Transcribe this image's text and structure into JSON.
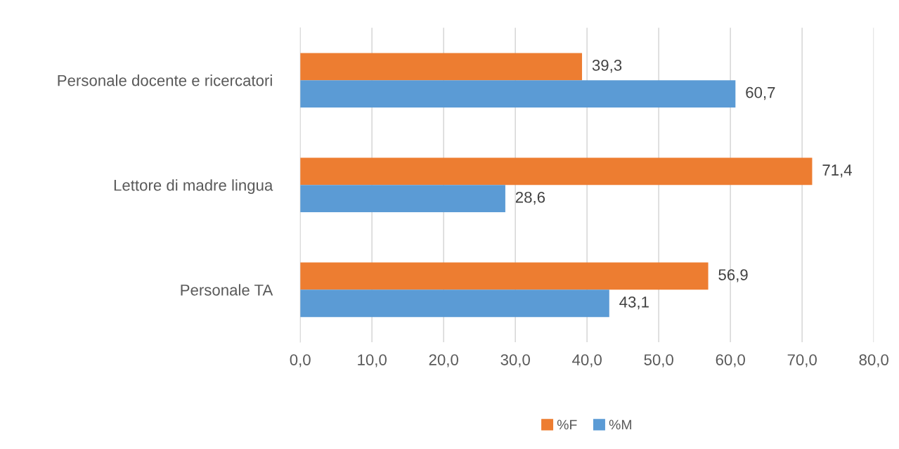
{
  "chart_data": {
    "type": "bar",
    "orientation": "horizontal",
    "categories": [
      "Personale docente e ricercatori",
      "Lettore di madre lingua",
      "Personale TA"
    ],
    "series": [
      {
        "name": "%F",
        "color": "#ed7d31",
        "values": [
          39.3,
          71.4,
          56.9
        ],
        "value_labels": [
          "39,3",
          "71,4",
          "56,9"
        ]
      },
      {
        "name": "%M",
        "color": "#5b9bd5",
        "values": [
          60.7,
          28.6,
          43.1
        ],
        "value_labels": [
          "60,7",
          "28,6",
          "43,1"
        ]
      }
    ],
    "xlim": [
      0,
      80
    ],
    "xticks": [
      {
        "value": 0,
        "label": "0,0"
      },
      {
        "value": 10,
        "label": "10,0"
      },
      {
        "value": 20,
        "label": "20,0"
      },
      {
        "value": 30,
        "label": "30,0"
      },
      {
        "value": 40,
        "label": "40,0"
      },
      {
        "value": 50,
        "label": "50,0"
      },
      {
        "value": 60,
        "label": "60,0"
      },
      {
        "value": 70,
        "label": "70,0"
      },
      {
        "value": 80,
        "label": "80,0"
      }
    ],
    "grid": "x",
    "legend": "bottom"
  }
}
